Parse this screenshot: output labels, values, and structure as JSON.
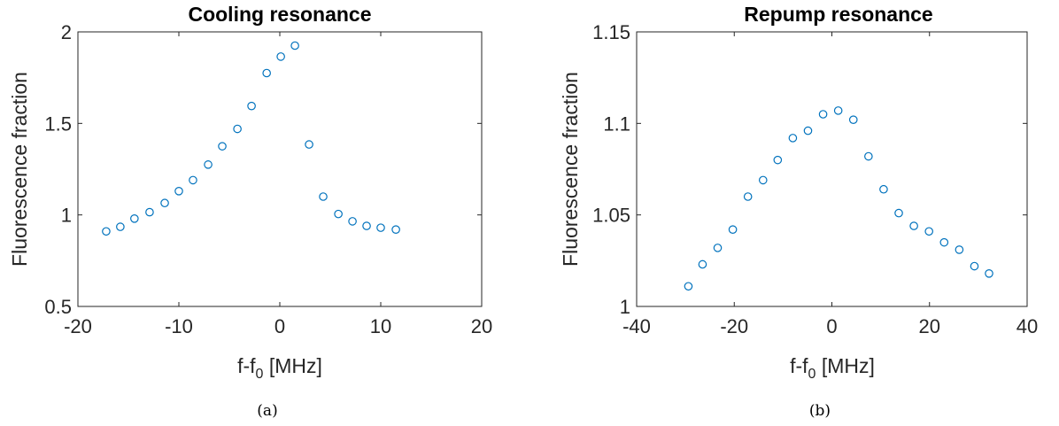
{
  "chart_data": [
    {
      "type": "scatter",
      "panel_label": "(a)",
      "title": "Cooling resonance",
      "xlabel_main": "f-f",
      "xlabel_sub": "0",
      "xlabel_rest": " [MHz]",
      "ylabel": "Fluorescence fraction",
      "xlim": [
        -20,
        20
      ],
      "ylim": [
        0.5,
        2
      ],
      "xticks": [
        -20,
        -10,
        0,
        10,
        20
      ],
      "xtick_labels": [
        "-20",
        "-10",
        "0",
        "10",
        "20"
      ],
      "yticks": [
        0.5,
        1,
        1.5,
        2
      ],
      "ytick_labels": [
        "0.5",
        "1",
        "1.5",
        "2"
      ],
      "grid": false,
      "marker_color": "#0072bd",
      "x": [
        -17.2,
        -15.8,
        -14.4,
        -12.9,
        -11.4,
        -10.0,
        -8.6,
        -7.1,
        -5.7,
        -4.2,
        -2.8,
        -1.3,
        0.1,
        1.5,
        2.9,
        4.3,
        5.8,
        7.2,
        8.6,
        10.0,
        11.5
      ],
      "y": [
        0.91,
        0.935,
        0.98,
        1.015,
        1.065,
        1.13,
        1.19,
        1.275,
        1.375,
        1.47,
        1.595,
        1.775,
        1.865,
        1.925,
        1.385,
        1.1,
        1.005,
        0.965,
        0.94,
        0.93,
        0.92
      ]
    },
    {
      "type": "scatter",
      "panel_label": "(b)",
      "title": "Repump resonance",
      "xlabel_main": "f-f",
      "xlabel_sub": "0",
      "xlabel_rest": " [MHz]",
      "ylabel": "Fluorescence fraction",
      "xlim": [
        -40,
        40
      ],
      "ylim": [
        1,
        1.15
      ],
      "xticks": [
        -40,
        -20,
        0,
        20,
        40
      ],
      "xtick_labels": [
        "-40",
        "-20",
        "0",
        "20",
        "40"
      ],
      "yticks": [
        1,
        1.05,
        1.1,
        1.15
      ],
      "ytick_labels": [
        "1",
        "1.05",
        "1.1",
        "1.15"
      ],
      "grid": false,
      "marker_color": "#0072bd",
      "x": [
        -29.4,
        -26.5,
        -23.4,
        -20.3,
        -17.2,
        -14.1,
        -11.1,
        -8.0,
        -4.9,
        -1.8,
        1.3,
        4.4,
        7.5,
        10.6,
        13.7,
        16.8,
        19.9,
        23.0,
        26.1,
        29.2,
        32.2
      ],
      "y": [
        1.011,
        1.023,
        1.032,
        1.042,
        1.06,
        1.069,
        1.08,
        1.092,
        1.096,
        1.105,
        1.107,
        1.102,
        1.082,
        1.064,
        1.051,
        1.044,
        1.041,
        1.035,
        1.031,
        1.022,
        1.018
      ]
    }
  ]
}
